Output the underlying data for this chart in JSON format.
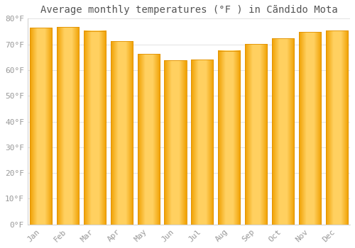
{
  "title": "Average monthly temperatures (°F ) in Cãndido Mota",
  "months": [
    "Jan",
    "Feb",
    "Mar",
    "Apr",
    "May",
    "Jun",
    "Jul",
    "Aug",
    "Sep",
    "Oct",
    "Nov",
    "Dec"
  ],
  "values": [
    76.5,
    76.8,
    75.2,
    71.3,
    66.3,
    63.7,
    64.1,
    67.5,
    70.2,
    72.3,
    74.8,
    75.3
  ],
  "bar_color": "#FFA500",
  "bar_edge_color": "#E89000",
  "ylim": [
    0,
    80
  ],
  "yticks": [
    0,
    10,
    20,
    30,
    40,
    50,
    60,
    70,
    80
  ],
  "background_color": "#FFFFFF",
  "grid_color": "#DDDDDD",
  "title_fontsize": 10,
  "tick_fontsize": 8,
  "tick_color": "#999999",
  "title_color": "#555555"
}
